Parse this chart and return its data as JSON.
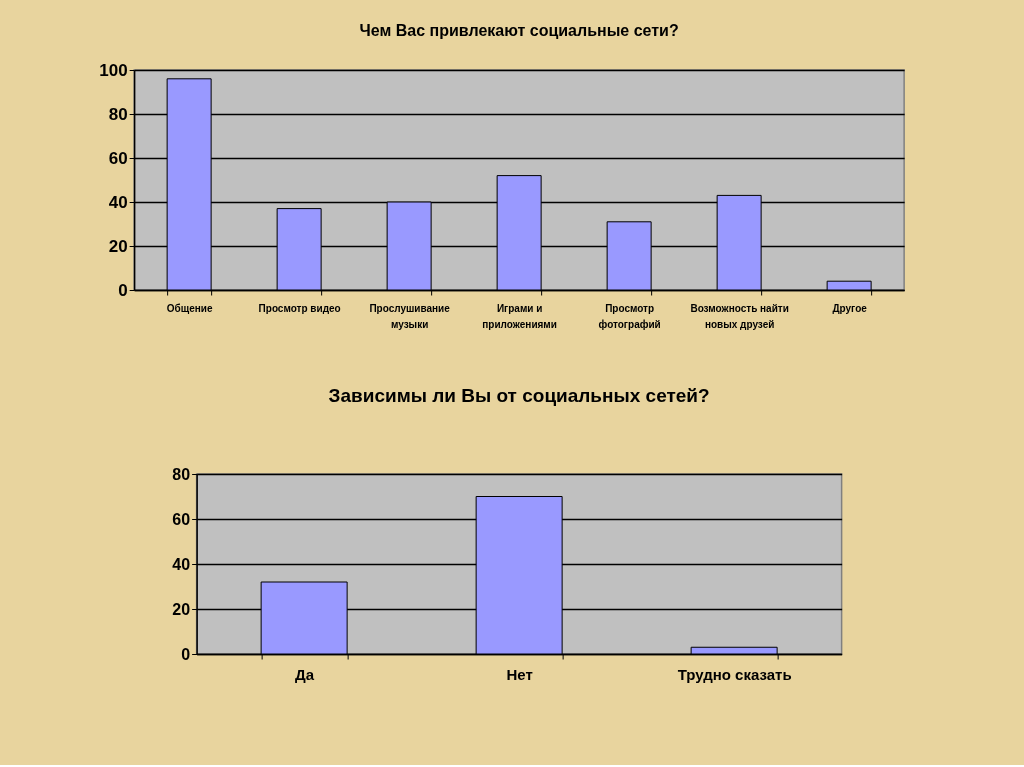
{
  "chart_data": [
    {
      "type": "bar",
      "title": "Чем Вас привлекают социальные сети?",
      "categories": [
        "Общение",
        "Просмотр видео",
        "Прослушивание музыки",
        "Играми и приложениями",
        "Просмотр фотографий",
        "Возможность найти новых друзей",
        "Другое"
      ],
      "values": [
        96,
        37,
        40,
        52,
        31,
        43,
        4
      ],
      "color": "#9999ff",
      "ylim": [
        0,
        100
      ],
      "yticks": [
        0,
        20,
        40,
        60,
        80,
        100
      ],
      "grid": "y"
    },
    {
      "type": "bar",
      "title": "Зависимы ли Вы от социальных сетей?",
      "categories": [
        "Да",
        "Нет",
        "Трудно сказать"
      ],
      "values": [
        32,
        70,
        3
      ],
      "color": "#9999ff",
      "ylim": [
        0,
        80
      ],
      "yticks": [
        0,
        20,
        40,
        60,
        80
      ],
      "grid": "y"
    }
  ]
}
